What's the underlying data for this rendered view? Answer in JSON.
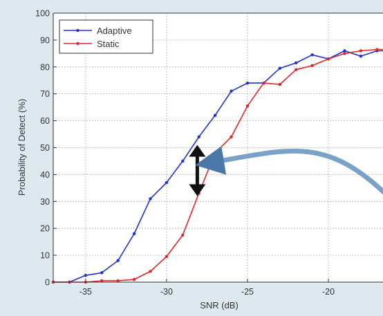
{
  "chart_data": {
    "type": "line",
    "xlabel": "SNR (dB)",
    "ylabel": "Probability of Detect (%)",
    "xlim": [
      -37,
      -16.5
    ],
    "ylim": [
      0,
      100
    ],
    "xticks": [
      -35,
      -30,
      -25,
      -20
    ],
    "yticks": [
      0,
      10,
      20,
      30,
      40,
      50,
      60,
      70,
      80,
      90,
      100
    ],
    "grid": true,
    "legend_position": "top-left",
    "series": [
      {
        "name": "Adaptive",
        "color": "#1f2fd6",
        "x": [
          -37,
          -36,
          -35,
          -34,
          -33,
          -32,
          -31,
          -30,
          -29,
          -28,
          -27,
          -26,
          -25,
          -24,
          -23,
          -22,
          -21,
          -20,
          -19,
          -18,
          -17,
          -16.5
        ],
        "y": [
          0,
          0,
          2.5,
          3.5,
          8,
          18,
          31,
          37,
          45,
          54,
          62,
          71,
          74,
          74,
          79.5,
          81.5,
          84.5,
          83,
          86,
          84,
          86,
          86
        ]
      },
      {
        "name": "Static",
        "color": "#e0262a",
        "x": [
          -37,
          -36,
          -35,
          -34,
          -33,
          -32,
          -31,
          -30,
          -29,
          -28,
          -27,
          -26,
          -25,
          -24,
          -23,
          -22,
          -21,
          -20,
          -19,
          -18,
          -17,
          -16.5
        ],
        "y": [
          0,
          0,
          0,
          0.5,
          0.5,
          1,
          4,
          9.5,
          17.5,
          33,
          48,
          54,
          65.5,
          74,
          73.5,
          79,
          80.5,
          83,
          85,
          86,
          86.5,
          86.5
        ]
      }
    ],
    "annotations": [
      {
        "kind": "double-arrow",
        "x": -28.1,
        "y_from": 32,
        "y_to": 51,
        "color": "#111111"
      },
      {
        "kind": "callout-arrow",
        "from": [
          -16.5,
          33
        ],
        "to": [
          -27.7,
          44
        ],
        "color": "#4a78a8"
      }
    ]
  }
}
